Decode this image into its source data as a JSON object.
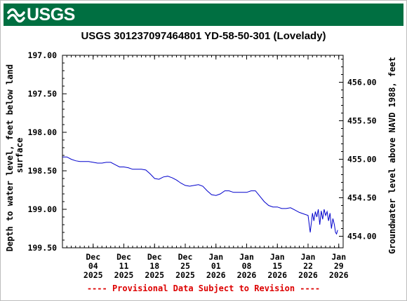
{
  "header": {
    "logo_text": "USGS",
    "logo_icon": "usgs-wave-icon",
    "banner_color": "#006f41"
  },
  "chart_data": {
    "type": "line",
    "title": "USGS 301237097464801 YD-58-50-301 (Lovelady)",
    "ylabel_left_lines": [
      "Depth to water level, feet below land",
      "surface"
    ],
    "ylabel_right": "Groundwater level above NAVD 1988, feet",
    "footer": "---- Provisional Data Subject to Revision ----",
    "line_color": "#0000cc",
    "grid": false,
    "x_range": [
      "2025-11-27",
      "2026-01-30"
    ],
    "x_ticks": [
      {
        "date": "2025-12-04",
        "lines": [
          "Dec",
          "04",
          "2025"
        ]
      },
      {
        "date": "2025-12-11",
        "lines": [
          "Dec",
          "11",
          "2025"
        ]
      },
      {
        "date": "2025-12-18",
        "lines": [
          "Dec",
          "18",
          "2025"
        ]
      },
      {
        "date": "2025-12-25",
        "lines": [
          "Dec",
          "25",
          "2025"
        ]
      },
      {
        "date": "2026-01-01",
        "lines": [
          "Jan",
          "01",
          "2026"
        ]
      },
      {
        "date": "2026-01-08",
        "lines": [
          "Jan",
          "08",
          "2026"
        ]
      },
      {
        "date": "2026-01-15",
        "lines": [
          "Jan",
          "15",
          "2026"
        ]
      },
      {
        "date": "2026-01-22",
        "lines": [
          "Jan",
          "22",
          "2026"
        ]
      },
      {
        "date": "2026-01-29",
        "lines": [
          "Jan",
          "29",
          "2026"
        ]
      }
    ],
    "y_left": {
      "min": 197.0,
      "max": 199.5,
      "inverted": true,
      "ticks": [
        "197.00",
        "197.50",
        "198.00",
        "198.50",
        "199.00",
        "199.50"
      ]
    },
    "y_right": {
      "offset": 653.35,
      "ticks": [
        "454.00",
        "454.50",
        "455.00",
        "455.50",
        "456.00"
      ]
    },
    "series": [
      {
        "points": [
          [
            "2025-11-27",
            198.32
          ],
          [
            "2025-11-28",
            198.32
          ],
          [
            "2025-11-29",
            198.35
          ],
          [
            "2025-11-30",
            198.37
          ],
          [
            "2025-12-01",
            198.38
          ],
          [
            "2025-12-02",
            198.38
          ],
          [
            "2025-12-03",
            198.38
          ],
          [
            "2025-12-04",
            198.39
          ],
          [
            "2025-12-05",
            198.4
          ],
          [
            "2025-12-06",
            198.4
          ],
          [
            "2025-12-07",
            198.39
          ],
          [
            "2025-12-08",
            198.39
          ],
          [
            "2025-12-09",
            198.42
          ],
          [
            "2025-12-10",
            198.45
          ],
          [
            "2025-12-11",
            198.45
          ],
          [
            "2025-12-12",
            198.46
          ],
          [
            "2025-12-13",
            198.48
          ],
          [
            "2025-12-14",
            198.48
          ],
          [
            "2025-12-15",
            198.48
          ],
          [
            "2025-12-16",
            198.49
          ],
          [
            "2025-12-17",
            198.54
          ],
          [
            "2025-12-18",
            198.6
          ],
          [
            "2025-12-19",
            198.61
          ],
          [
            "2025-12-20",
            198.58
          ],
          [
            "2025-12-21",
            198.57
          ],
          [
            "2025-12-22",
            198.59
          ],
          [
            "2025-12-23",
            198.62
          ],
          [
            "2025-12-24",
            198.66
          ],
          [
            "2025-12-25",
            198.69
          ],
          [
            "2025-12-26",
            198.7
          ],
          [
            "2025-12-27",
            198.69
          ],
          [
            "2025-12-28",
            198.68
          ],
          [
            "2025-12-29",
            198.7
          ],
          [
            "2025-12-30",
            198.76
          ],
          [
            "2025-12-31",
            198.81
          ],
          [
            "2026-01-01",
            198.82
          ],
          [
            "2026-01-02",
            198.8
          ],
          [
            "2026-01-03",
            198.76
          ],
          [
            "2026-01-04",
            198.76
          ],
          [
            "2026-01-05",
            198.78
          ],
          [
            "2026-01-06",
            198.78
          ],
          [
            "2026-01-07",
            198.78
          ],
          [
            "2026-01-08",
            198.78
          ],
          [
            "2026-01-09",
            198.76
          ],
          [
            "2026-01-10",
            198.76
          ],
          [
            "2026-01-11",
            198.83
          ],
          [
            "2026-01-12",
            198.9
          ],
          [
            "2026-01-13",
            198.95
          ],
          [
            "2026-01-14",
            198.97
          ],
          [
            "2026-01-15",
            198.97
          ],
          [
            "2026-01-16",
            198.99
          ],
          [
            "2026-01-17",
            198.99
          ],
          [
            "2026-01-18",
            198.98
          ],
          [
            "2026-01-19",
            199.01
          ],
          [
            "2026-01-20",
            199.04
          ],
          [
            "2026-01-21",
            199.06
          ],
          [
            "2026-01-22",
            199.08
          ],
          [
            "2026-01-22T12:00",
            199.3
          ],
          [
            "2026-01-23",
            199.05
          ],
          [
            "2026-01-23T08:00",
            199.15
          ],
          [
            "2026-01-23T16:00",
            199.03
          ],
          [
            "2026-01-24",
            199.1
          ],
          [
            "2026-01-24T08:00",
            199.0
          ],
          [
            "2026-01-24T16:00",
            199.2
          ],
          [
            "2026-01-25",
            199.02
          ],
          [
            "2026-01-25T08:00",
            199.13
          ],
          [
            "2026-01-25T16:00",
            199.0
          ],
          [
            "2026-01-26",
            199.08
          ],
          [
            "2026-01-26T08:00",
            199.03
          ],
          [
            "2026-01-26T16:00",
            199.15
          ],
          [
            "2026-01-27",
            199.05
          ],
          [
            "2026-01-27T08:00",
            199.25
          ],
          [
            "2026-01-27T16:00",
            199.12
          ],
          [
            "2026-01-28",
            199.2
          ],
          [
            "2026-01-28T06:00",
            199.3
          ],
          [
            "2026-01-28T12:00",
            199.32
          ],
          [
            "2026-01-28T18:00",
            199.27
          ]
        ]
      }
    ]
  }
}
